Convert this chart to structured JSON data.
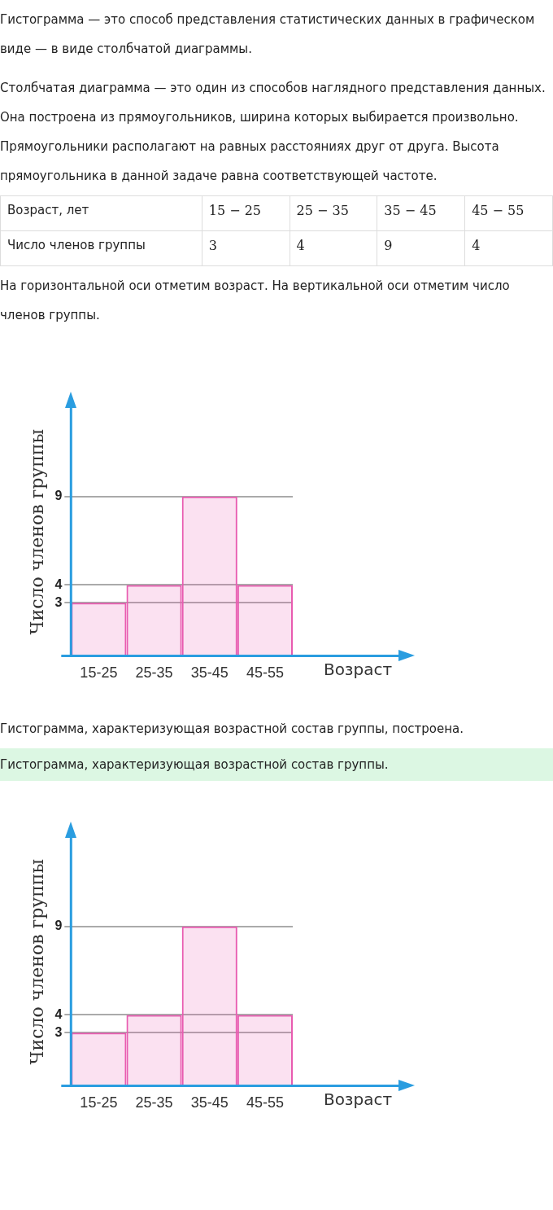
{
  "chart_data": [
    {
      "type": "other",
      "title": "Гистограмма — это способ представления статистических данных в графическом виде — в виде столбчатой диаграммы.",
      "subtitle": "Столбчатая диаграмма — это один из способов наглядного представления данных. Она построена из прямоугольников, ширина которых выбирается произвольно. Прямоугольники располагают на равных расстояниях друг от друга. Высота прямоугольника в данной задаче равна соответствующей частоте.",
      "xlabel": "Возраст, лет",
      "ylabel": "Число членов группы",
      "categories": [
        "15 − 25",
        "25 − 35",
        "35 − 45",
        "45 − 55"
      ],
      "values": [
        3,
        4,
        9,
        4
      ],
      "data_labels": true,
      "annotations": [
        "На горизонтальной оси отметим возраст. На вертикальной оси отметим число членов группы."
      ]
    },
    {
      "type": "bar",
      "xlabel": "Возраст",
      "ylabel": "Число членов группы",
      "categories": [
        "15-25",
        "25-35",
        "35-45",
        "45-55"
      ],
      "values": [
        3,
        4,
        9,
        4
      ],
      "color": "#e85bb0",
      "ylim": [
        0,
        14
      ],
      "yticks": [
        3,
        4,
        9
      ],
      "grid": "y"
    },
    {
      "type": "bar",
      "title": "Гистограмма, характеризующая возрастной состав группы, построена.",
      "subtitle": "Гистограмма, характеризующая возрастной состав группы.",
      "xlabel": "Возраст",
      "ylabel": "Число членов группы",
      "categories": [
        "15-25",
        "25-35",
        "35-45",
        "45-55"
      ],
      "values": [
        3,
        4,
        9,
        4
      ],
      "color": "#e85bb0",
      "ylim": [
        0,
        14
      ],
      "yticks": [
        3,
        4,
        9
      ],
      "grid": "y"
    }
  ]
}
